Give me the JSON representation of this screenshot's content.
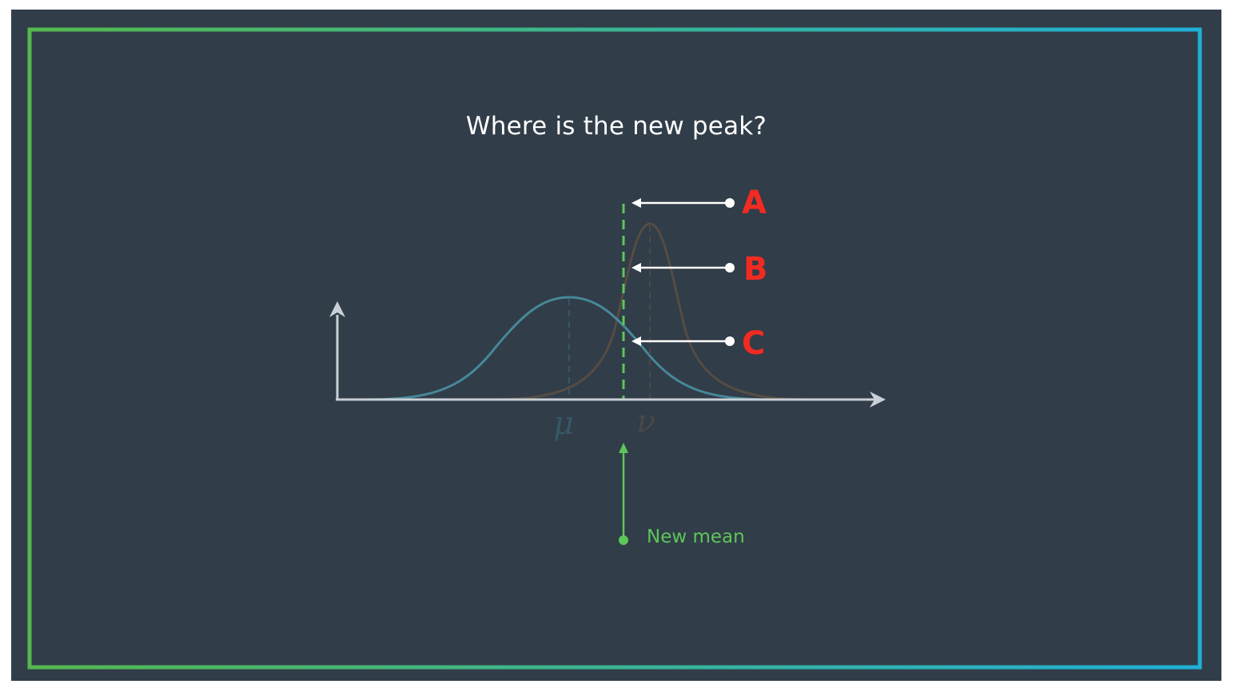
{
  "slide": {
    "title": "Where is the new peak?",
    "frame_gradient": [
      "#55b94f",
      "#1fb0d8"
    ],
    "background": "#313d48"
  },
  "options": [
    {
      "label": "A"
    },
    {
      "label": "B"
    },
    {
      "label": "C"
    }
  ],
  "axis_symbols": {
    "mu": "μ",
    "nu": "ν"
  },
  "new_mean": {
    "label": "New mean",
    "color": "#5cc65a"
  },
  "colors": {
    "prior_curve": "#46889a",
    "measurement_curve": "#554c44",
    "axes": "#c9d0d6",
    "option_label": "#f22b22",
    "option_arrow": "#ffffff"
  }
}
